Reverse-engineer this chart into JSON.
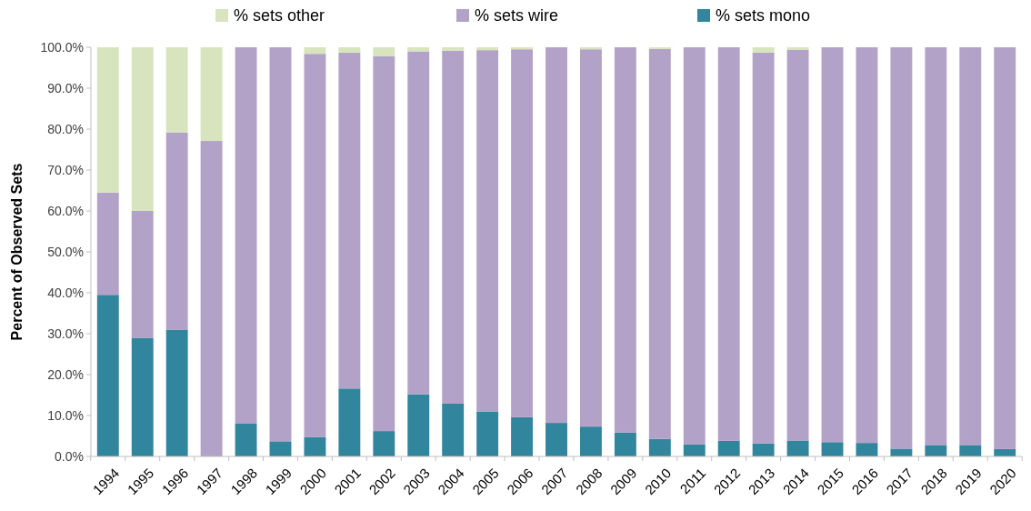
{
  "chart_data": {
    "type": "bar",
    "stacked": true,
    "ylabel": "Percent of Observed Sets",
    "categories": [
      "1994",
      "1995",
      "1996",
      "1997",
      "1998",
      "1999",
      "2000",
      "2001",
      "2002",
      "2003",
      "2004",
      "2005",
      "2006",
      "2007",
      "2008",
      "2009",
      "2010",
      "2011",
      "2012",
      "2013",
      "2014",
      "2015",
      "2016",
      "2017",
      "2018",
      "2019",
      "2020"
    ],
    "series": [
      {
        "name": "% sets mono",
        "color": "#31859c",
        "values": [
          39.5,
          29,
          31,
          0,
          8,
          3.7,
          4.7,
          16.6,
          6.2,
          15.2,
          12.9,
          10.9,
          9.6,
          8.2,
          7.3,
          5.8,
          4.3,
          2.9,
          3.8,
          3.2,
          3.9,
          3.5,
          3.3,
          1.9,
          2.8,
          2.8,
          1.8
        ]
      },
      {
        "name": "% sets wire",
        "color": "#b3a2c7",
        "values": [
          25,
          31,
          48.2,
          77.1,
          92,
          96.3,
          93.7,
          82.1,
          91.6,
          83.8,
          86.3,
          88.4,
          89.9,
          91.8,
          92.2,
          94.2,
          95.3,
          97.1,
          96.2,
          95.5,
          95.5,
          96.5,
          96.7,
          98.1,
          97.2,
          97.2,
          98.2
        ]
      },
      {
        "name": "% sets other",
        "color": "#d7e4bd",
        "values": [
          35.5,
          40,
          20.8,
          22.9,
          0,
          0,
          1.6,
          1.3,
          2.2,
          1,
          0.8,
          0.7,
          0.5,
          0,
          0.5,
          0,
          0.4,
          0,
          0,
          1.3,
          0.6,
          0,
          0,
          0,
          0,
          0,
          0
        ]
      }
    ],
    "ylim": [
      0,
      100
    ],
    "yticks": [
      {
        "value": 0,
        "label": "0.0%"
      },
      {
        "value": 10,
        "label": "10.0%"
      },
      {
        "value": 20,
        "label": "20.0%"
      },
      {
        "value": 30,
        "label": "30.0%"
      },
      {
        "value": 40,
        "label": "40.0%"
      },
      {
        "value": 50,
        "label": "50.0%"
      },
      {
        "value": 60,
        "label": "60.0%"
      },
      {
        "value": 70,
        "label": "70.0%"
      },
      {
        "value": 80,
        "label": "80.0%"
      },
      {
        "value": 90,
        "label": "90.0%"
      },
      {
        "value": 100,
        "label": "100.0%"
      }
    ],
    "grid": false,
    "legend": "top"
  }
}
